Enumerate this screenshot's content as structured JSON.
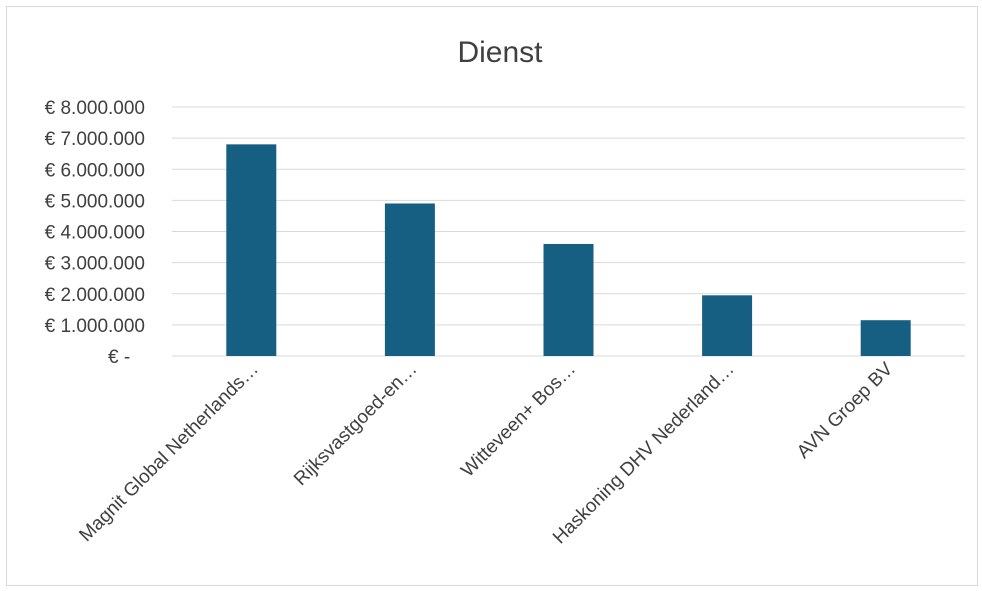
{
  "chart_data": {
    "type": "bar",
    "title": "Dienst",
    "categories": [
      "Magnit Global Netherlands…",
      "Rijksvastgoed-en…",
      "Witteveen+ Bos…",
      "Haskoning DHV Nederland…",
      "AVN Groep BV"
    ],
    "values": [
      6800000,
      4900000,
      3600000,
      1950000,
      1150000
    ],
    "ylim": [
      0,
      8000000
    ],
    "y_ticks": [
      "€ -",
      "€ 1.000.000",
      "€ 2.000.000",
      "€ 3.000.000",
      "€ 4.000.000",
      "€ 5.000.000",
      "€ 6.000.000",
      "€ 7.000.000",
      "€ 8.000.000"
    ],
    "grid": true,
    "bar_color": "#175f82",
    "grid_color": "#d9d9d9",
    "text_color": "#404040"
  }
}
